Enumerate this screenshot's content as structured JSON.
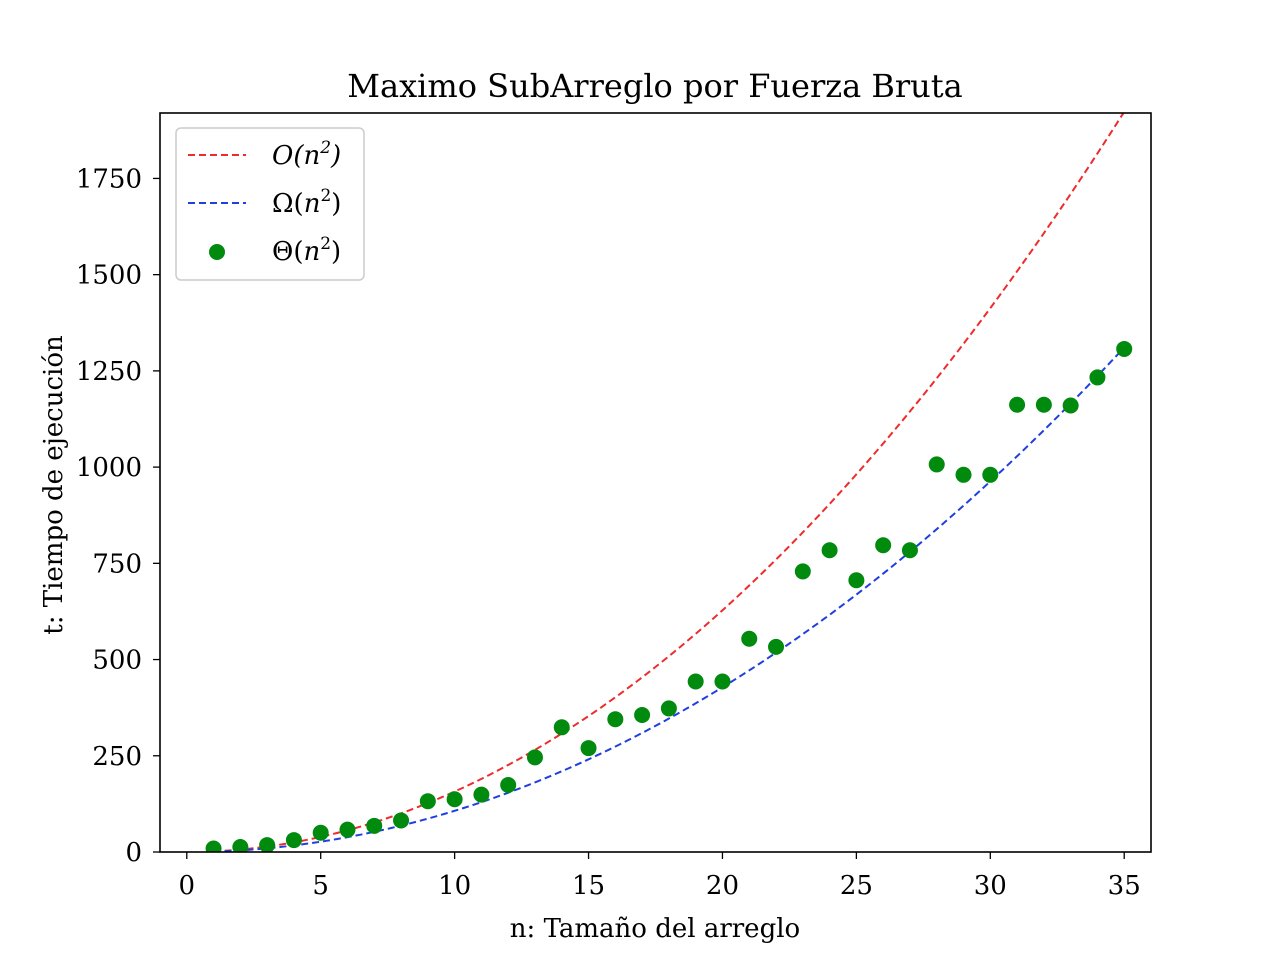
{
  "chart_data": {
    "type": "scatter",
    "title": "Maximo SubArreglo por Fuerza Bruta",
    "xlabel": "n: Tamaño del arreglo",
    "ylabel": "t: Tiempo de ejecución",
    "xlim": [
      -1,
      36
    ],
    "ylim": [
      0,
      1920
    ],
    "xticks": [
      0,
      5,
      10,
      15,
      20,
      25,
      30,
      35
    ],
    "yticks": [
      0,
      250,
      500,
      750,
      1000,
      1250,
      1500,
      1750
    ],
    "grid": false,
    "legend_position": "top-left",
    "series": [
      {
        "name": "O(n2)",
        "kind": "line",
        "style": "dashed",
        "color": "#ee2c2c",
        "formula": "1.57*n^2",
        "x_range": [
          1,
          35
        ]
      },
      {
        "name": "Ω(n2)",
        "kind": "line",
        "style": "dashed",
        "color": "#1f3fe0",
        "formula": "1.07*n^2",
        "x_range": [
          1,
          35
        ]
      },
      {
        "name": "Θ(n2)",
        "kind": "scatter",
        "color": "#008a0e",
        "x": [
          1,
          2,
          3,
          4,
          5,
          6,
          7,
          8,
          9,
          10,
          11,
          12,
          13,
          14,
          15,
          16,
          17,
          18,
          19,
          20,
          21,
          22,
          23,
          24,
          25,
          26,
          27,
          28,
          29,
          30,
          31,
          32,
          33,
          34,
          35
        ],
        "y": [
          9,
          13,
          18,
          31,
          50,
          58,
          68,
          82,
          132,
          137,
          149,
          174,
          246,
          324,
          270,
          345,
          356,
          373,
          443,
          443,
          554,
          533,
          729,
          784,
          706,
          797,
          784,
          1007,
          980,
          980,
          1162,
          1162,
          1160,
          1233,
          1307
        ]
      }
    ]
  }
}
